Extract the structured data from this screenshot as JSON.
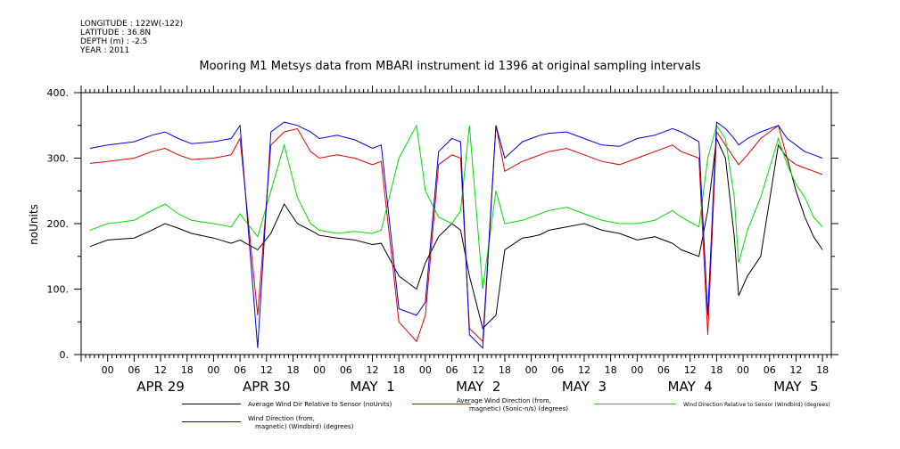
{
  "meta": {
    "lines": [
      "LONGITUDE : 122W(-122)",
      "LATITUDE : 36.8N",
      "DEPTH (m) : -2.5",
      "YEAR : 2011"
    ]
  },
  "chart_data": {
    "type": "line",
    "title": "Mooring M1 Metsys data from MBARI instrument id 1396 at original sampling intervals",
    "ylabel": "noUnits",
    "xlabel": "",
    "ylim": [
      0,
      400
    ],
    "yticks": [
      0,
      100,
      200,
      300,
      400
    ],
    "ytick_labels": [
      "0.",
      "100.",
      "200.",
      "300.",
      "400."
    ],
    "xlim_hours": [
      -6,
      164
    ],
    "hour_tick_labels": [
      "00",
      "06",
      "12",
      "18",
      "00",
      "06",
      "12",
      "18",
      "00",
      "06",
      "12",
      "18",
      "00",
      "06",
      "12",
      "18",
      "00",
      "06",
      "12",
      "18",
      "00",
      "06",
      "12",
      "18",
      "00",
      "06",
      "12",
      "18"
    ],
    "day_labels": [
      "APR 29",
      "APR 30",
      "MAY  1",
      "MAY  2",
      "MAY  3",
      "MAY  4",
      "MAY  5"
    ],
    "grid": false,
    "series": [
      {
        "name": "Average Wind Dir Relative to Sensor (noUnits)",
        "color": "#000000",
        "x": [
          -4,
          0,
          6,
          10,
          13,
          16,
          19,
          24,
          28,
          30,
          34,
          37,
          40,
          43,
          46,
          48,
          52,
          56,
          60,
          62,
          66,
          70,
          72,
          75,
          78,
          80,
          82,
          85,
          88,
          90,
          94,
          96,
          98,
          100,
          104,
          108,
          112,
          116,
          120,
          124,
          128,
          130,
          134,
          136,
          138,
          140,
          142,
          143,
          145,
          148,
          152,
          154,
          156,
          158,
          160,
          162
        ],
        "y": [
          165,
          175,
          178,
          190,
          200,
          193,
          185,
          178,
          170,
          175,
          160,
          185,
          230,
          200,
          190,
          182,
          178,
          175,
          168,
          170,
          120,
          100,
          140,
          180,
          200,
          190,
          120,
          40,
          60,
          160,
          178,
          180,
          183,
          190,
          195,
          200,
          190,
          185,
          175,
          180,
          170,
          160,
          150,
          220,
          330,
          300,
          180,
          90,
          120,
          150,
          320,
          300,
          250,
          210,
          180,
          160
        ]
      },
      {
        "name": "Average Wind Direction (from, magnetic) (Sonic-n/s) (degrees)",
        "color": "#dd0000",
        "x": [
          -4,
          0,
          6,
          10,
          13,
          16,
          19,
          24,
          28,
          30,
          34,
          37,
          40,
          43,
          46,
          48,
          52,
          56,
          60,
          62,
          66,
          70,
          72,
          75,
          78,
          80,
          82,
          85,
          88,
          90,
          94,
          96,
          98,
          100,
          104,
          108,
          112,
          116,
          120,
          124,
          128,
          130,
          134,
          136,
          138,
          140,
          142,
          143,
          145,
          148,
          152,
          154,
          156,
          158,
          160,
          162
        ],
        "y": [
          292,
          295,
          300,
          310,
          315,
          305,
          298,
          300,
          305,
          330,
          60,
          320,
          340,
          345,
          310,
          300,
          305,
          300,
          290,
          295,
          50,
          20,
          60,
          290,
          305,
          300,
          40,
          20,
          350,
          280,
          295,
          300,
          305,
          310,
          315,
          305,
          295,
          290,
          300,
          310,
          320,
          310,
          300,
          30,
          340,
          320,
          300,
          290,
          305,
          330,
          350,
          300,
          290,
          285,
          280,
          275
        ]
      },
      {
        "name": "Wind Direction Relative to Sensor (Windbird) (degrees)",
        "color": "#00dd00",
        "x": [
          -4,
          0,
          6,
          10,
          13,
          16,
          19,
          24,
          28,
          30,
          34,
          37,
          40,
          43,
          46,
          48,
          52,
          56,
          60,
          62,
          66,
          70,
          72,
          75,
          78,
          80,
          82,
          85,
          88,
          90,
          94,
          96,
          98,
          100,
          104,
          108,
          112,
          116,
          120,
          124,
          128,
          130,
          134,
          136,
          138,
          140,
          142,
          143,
          145,
          148,
          152,
          154,
          156,
          158,
          160,
          162
        ],
        "y": [
          190,
          200,
          205,
          220,
          230,
          215,
          205,
          200,
          195,
          215,
          180,
          250,
          320,
          240,
          200,
          190,
          185,
          188,
          185,
          190,
          300,
          350,
          250,
          210,
          200,
          220,
          350,
          100,
          250,
          200,
          205,
          210,
          215,
          220,
          225,
          215,
          205,
          200,
          200,
          205,
          220,
          210,
          195,
          300,
          350,
          330,
          240,
          140,
          190,
          240,
          330,
          290,
          260,
          240,
          210,
          195
        ]
      },
      {
        "name": "Wind Direction (from, magnetic) (Windbird) (degrees)",
        "color": "#0000dd",
        "x": [
          -4,
          0,
          6,
          10,
          13,
          16,
          19,
          24,
          28,
          30,
          34,
          37,
          40,
          43,
          46,
          48,
          52,
          56,
          60,
          62,
          66,
          70,
          72,
          75,
          78,
          80,
          82,
          85,
          88,
          90,
          94,
          96,
          98,
          100,
          104,
          108,
          112,
          116,
          120,
          124,
          128,
          130,
          134,
          136,
          138,
          140,
          142,
          143,
          145,
          148,
          152,
          154,
          156,
          158,
          160,
          162
        ],
        "y": [
          315,
          320,
          325,
          335,
          340,
          330,
          322,
          325,
          330,
          350,
          10,
          340,
          355,
          350,
          340,
          330,
          335,
          328,
          315,
          320,
          70,
          60,
          80,
          310,
          330,
          325,
          30,
          10,
          350,
          300,
          325,
          330,
          335,
          338,
          340,
          330,
          320,
          318,
          330,
          335,
          345,
          340,
          325,
          60,
          355,
          345,
          330,
          320,
          330,
          340,
          350,
          330,
          320,
          310,
          305,
          300
        ]
      }
    ],
    "legend": [
      {
        "lines": [
          "Average Wind Dir Relative to Sensor (noUnits)"
        ]
      },
      {
        "lines": [
          "Average Wind Direction (from,",
          "magnetic) (Sonic-n/s) (degrees)"
        ]
      },
      {
        "lines": [
          "Wind Direction Relative to Sensor (Windbird) (degrees)"
        ]
      },
      {
        "lines": [
          "Wind Direction (from,",
          "magnetic) (Windbird) (degrees)"
        ]
      }
    ]
  }
}
